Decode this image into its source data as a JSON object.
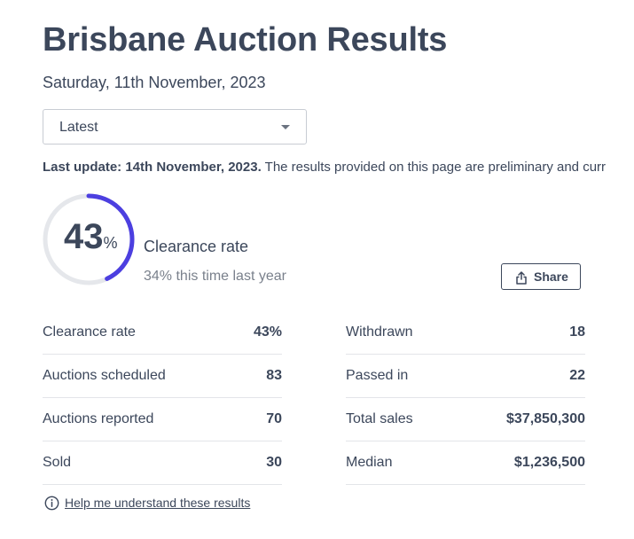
{
  "header": {
    "title": "Brisbane Auction Results",
    "date": "Saturday, 11th November, 2023"
  },
  "filter": {
    "selected": "Latest"
  },
  "update": {
    "bold": "Last update: 14th November, 2023.",
    "text": " The results provided on this page are preliminary and curr"
  },
  "clearance": {
    "value": "43",
    "unit": "%",
    "fraction": 0.43,
    "label": "Clearance rate",
    "last_year": "34% this time last year",
    "accent_color": "#4c3fe0",
    "track_color": "#e5e7eb"
  },
  "share": {
    "label": "Share",
    "icon": "share-icon"
  },
  "stats_left": [
    {
      "label": "Clearance rate",
      "value": "43%"
    },
    {
      "label": "Auctions scheduled",
      "value": "83"
    },
    {
      "label": "Auctions reported",
      "value": "70"
    },
    {
      "label": "Sold",
      "value": "30"
    }
  ],
  "stats_right": [
    {
      "label": "Withdrawn",
      "value": "18"
    },
    {
      "label": "Passed in",
      "value": "22"
    },
    {
      "label": "Total sales",
      "value": "$37,850,300"
    },
    {
      "label": "Median",
      "value": "$1,236,500"
    }
  ],
  "help": {
    "label": "Help me understand these results",
    "icon": "info-icon"
  }
}
